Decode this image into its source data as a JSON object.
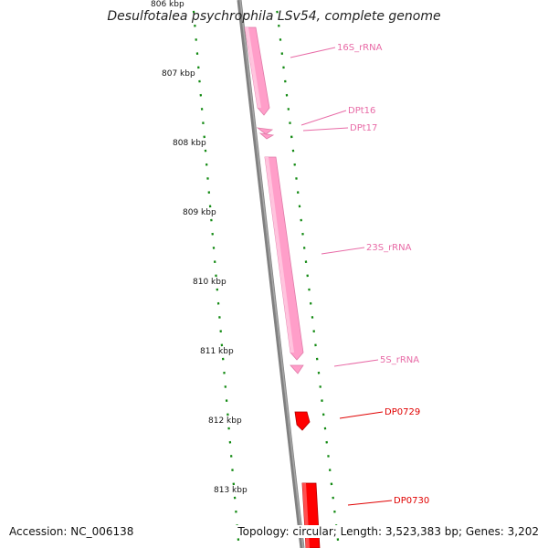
{
  "title": "Desulfotalea psychrophila LSv54, complete genome",
  "accession": "Accession: NC_006138",
  "summary": "Topology: circular; Length: 3,523,383 bp; Genes: 3,202",
  "colors": {
    "backbone": "#808080",
    "tick": "#138a13",
    "rna_feature": "#ff9ec9",
    "rna_label": "#e86aa6",
    "gene_feature": "#ff0000",
    "gene_label": "#e00000"
  },
  "scale_ticks": [
    "806 kbp",
    "807 kbp",
    "808 kbp",
    "809 kbp",
    "810 kbp",
    "811 kbp",
    "812 kbp",
    "813 kbp"
  ],
  "features": [
    {
      "name": "16S_rRNA",
      "type": "rRNA"
    },
    {
      "name": "DPt16",
      "type": "tRNA"
    },
    {
      "name": "DPt17",
      "type": "tRNA"
    },
    {
      "name": "23S_rRNA",
      "type": "rRNA"
    },
    {
      "name": "5S_rRNA",
      "type": "rRNA"
    },
    {
      "name": "DP0729",
      "type": "gene"
    },
    {
      "name": "DP0730",
      "type": "gene"
    }
  ]
}
